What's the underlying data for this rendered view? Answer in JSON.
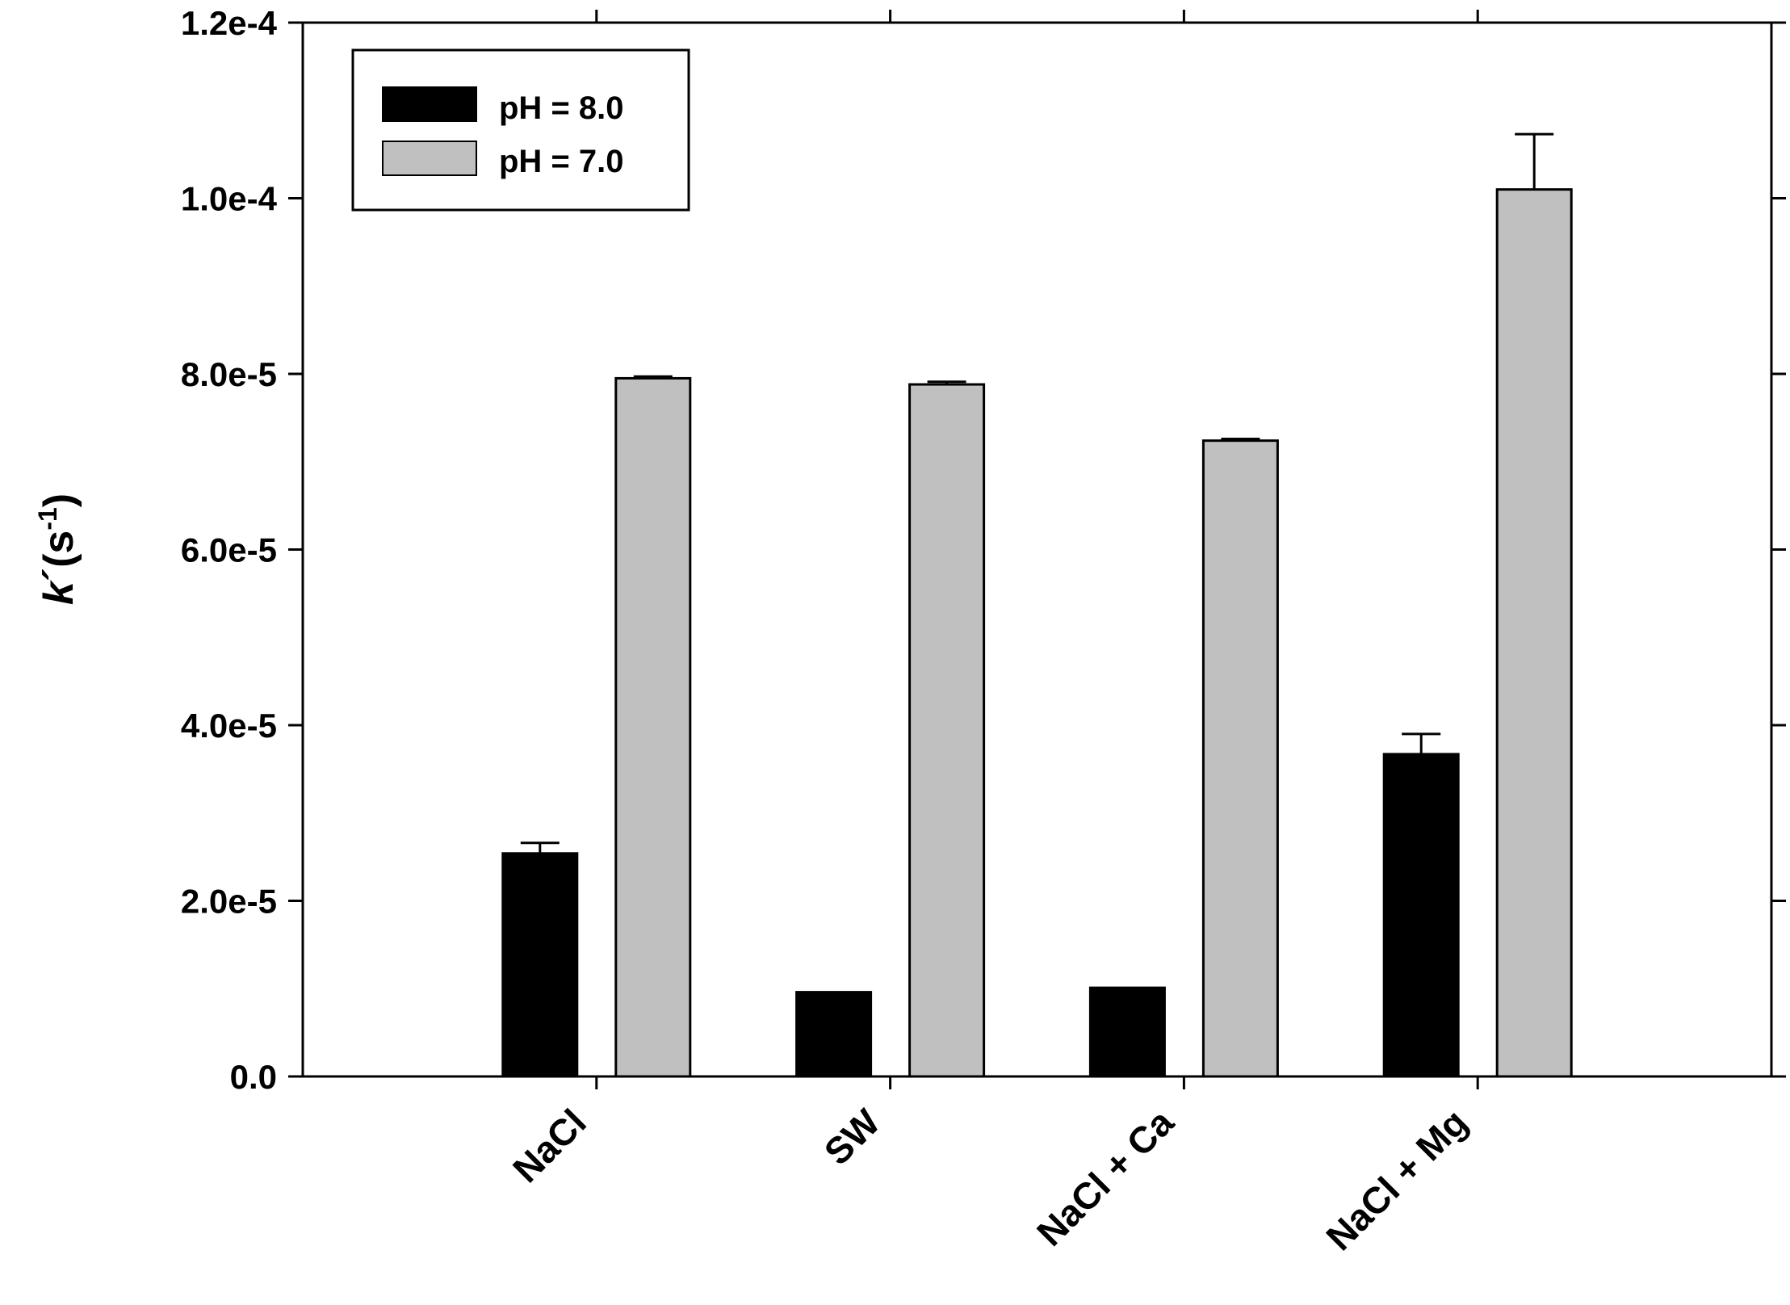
{
  "chart_data": {
    "type": "bar",
    "title": "",
    "xlabel": "",
    "ylabel": "k´(s⁻¹)",
    "ylabel_parts": {
      "symbol": "k",
      "prime": "´",
      "base": "(s",
      "sup": "-1",
      "close": ")"
    },
    "ylim": [
      0,
      0.00012
    ],
    "yticks": [
      0,
      2e-05,
      4e-05,
      6e-05,
      8e-05,
      0.0001,
      0.00012
    ],
    "ytick_labels": [
      "0.0",
      "2.0e-5",
      "4.0e-5",
      "6.0e-5",
      "8.0e-5",
      "1.0e-4",
      "1.2e-4"
    ],
    "categories": [
      "NaCl",
      "SW",
      "NaCl + Ca",
      "NaCl + Mg"
    ],
    "series": [
      {
        "name": "pH = 8.0",
        "color": "#000000",
        "values": [
          2.54e-05,
          9.6e-06,
          1.01e-05,
          3.67e-05
        ],
        "errors": [
          1.2e-06,
          0,
          0,
          2.3e-06
        ]
      },
      {
        "name": "pH = 7.0",
        "color": "#c0c0c0",
        "values": [
          7.95e-05,
          7.88e-05,
          7.24e-05,
          0.000101
        ],
        "errors": [
          2e-07,
          3e-07,
          2e-07,
          6.3e-06
        ]
      }
    ],
    "legend": {
      "position": "top-left"
    },
    "grid": false
  }
}
